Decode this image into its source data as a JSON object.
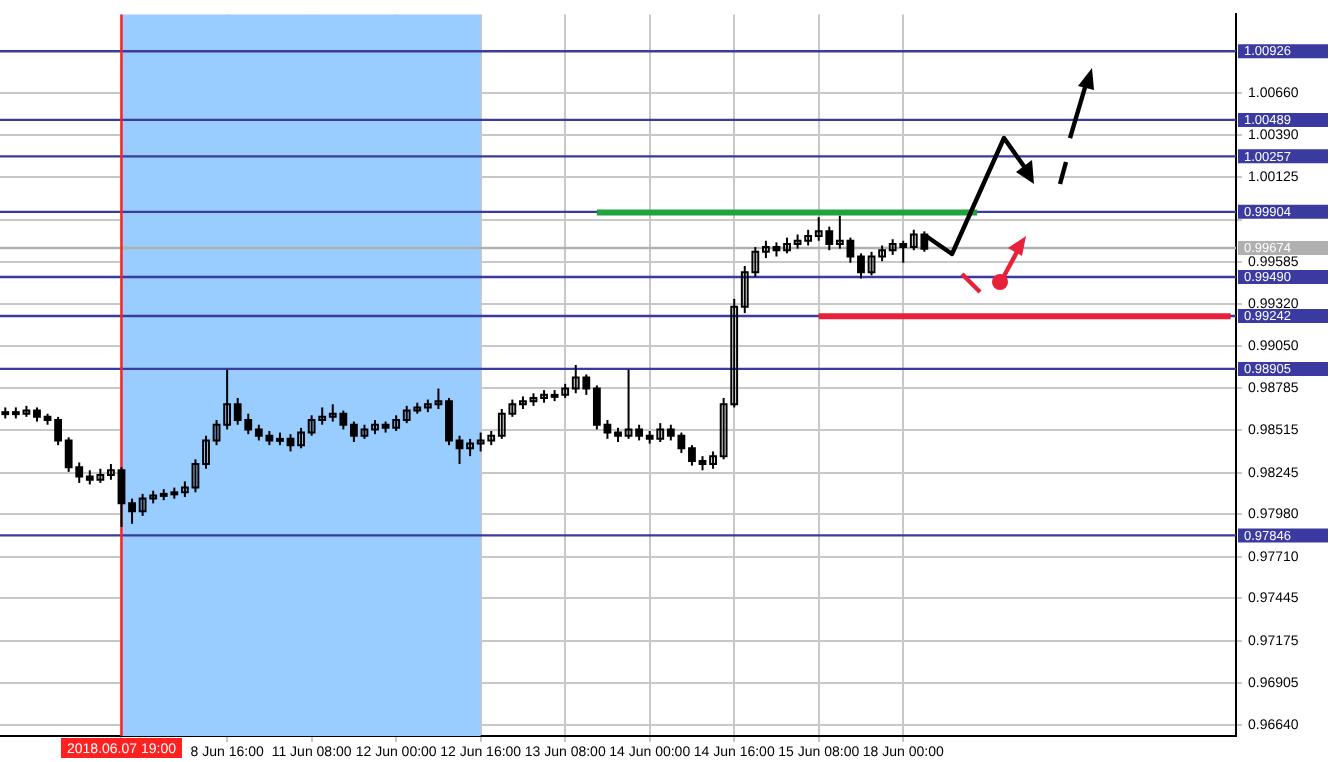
{
  "chart_data": {
    "type": "candlestick",
    "color": "#000000",
    "categories": [
      null,
      null,
      null,
      null,
      null,
      null,
      null,
      null,
      null,
      null,
      null,
      "2018.06.07 19:00",
      null,
      null,
      null,
      null,
      null,
      null,
      null,
      null,
      null,
      "8 Jun 16:00",
      null,
      null,
      null,
      null,
      null,
      null,
      null,
      "11 Jun 08:00",
      null,
      null,
      null,
      null,
      null,
      null,
      null,
      "12 Jun 00:00",
      null,
      null,
      null,
      null,
      null,
      null,
      null,
      "12 Jun 16:00",
      null,
      null,
      null,
      null,
      null,
      null,
      null,
      "13 Jun 08:00",
      null,
      null,
      null,
      null,
      null,
      null,
      null,
      "14 Jun 00:00",
      null,
      null,
      null,
      null,
      null,
      null,
      null,
      "14 Jun 16:00",
      null,
      null,
      null,
      null,
      null,
      null,
      null,
      "15 Jun 08:00",
      null,
      null,
      null,
      null,
      null,
      null,
      null,
      "18 Jun 00:00",
      null,
      null,
      null,
      null,
      null,
      null,
      null,
      null,
      null,
      null,
      null,
      null,
      null,
      null,
      null,
      null,
      null,
      null,
      null,
      null,
      null,
      null,
      null,
      null,
      null,
      null,
      null,
      null,
      null,
      null,
      null
    ],
    "ohlc": [
      [
        0.9862,
        0.9866,
        0.9859,
        0.9863
      ],
      [
        0.9863,
        0.9866,
        0.9859,
        0.9862
      ],
      [
        0.9862,
        0.9867,
        0.986,
        0.9864
      ],
      [
        0.9864,
        0.9866,
        0.9857,
        0.986
      ],
      [
        0.986,
        0.9862,
        0.9855,
        0.9858
      ],
      [
        0.9858,
        0.986,
        0.9842,
        0.9845
      ],
      [
        0.9845,
        0.9847,
        0.9825,
        0.9828
      ],
      [
        0.9828,
        0.9831,
        0.9818,
        0.9822
      ],
      [
        0.9822,
        0.9826,
        0.9817,
        0.982
      ],
      [
        0.982,
        0.9827,
        0.9818,
        0.9823
      ],
      [
        0.9823,
        0.983,
        0.982,
        0.9826
      ],
      [
        0.9826,
        0.9828,
        0.979,
        0.9805
      ],
      [
        0.9805,
        0.9808,
        0.9792,
        0.98
      ],
      [
        0.98,
        0.9811,
        0.9797,
        0.9808
      ],
      [
        0.9808,
        0.9813,
        0.9805,
        0.981
      ],
      [
        0.981,
        0.9814,
        0.9807,
        0.9811
      ],
      [
        0.9811,
        0.9815,
        0.9808,
        0.9812
      ],
      [
        0.9812,
        0.9819,
        0.9809,
        0.9815
      ],
      [
        0.9815,
        0.9833,
        0.9812,
        0.983
      ],
      [
        0.983,
        0.9848,
        0.9827,
        0.9845
      ],
      [
        0.9845,
        0.9858,
        0.9842,
        0.9855
      ],
      [
        0.9855,
        0.989,
        0.9852,
        0.9868
      ],
      [
        0.9868,
        0.9872,
        0.9855,
        0.9858
      ],
      [
        0.9858,
        0.9862,
        0.9849,
        0.9852
      ],
      [
        0.9852,
        0.9855,
        0.9845,
        0.9848
      ],
      [
        0.9848,
        0.9851,
        0.9842,
        0.9845
      ],
      [
        0.9845,
        0.985,
        0.9842,
        0.9846
      ],
      [
        0.9846,
        0.9849,
        0.9838,
        0.9842
      ],
      [
        0.9842,
        0.9853,
        0.984,
        0.985
      ],
      [
        0.985,
        0.9861,
        0.9848,
        0.9858
      ],
      [
        0.9858,
        0.9866,
        0.9855,
        0.986
      ],
      [
        0.986,
        0.9868,
        0.9857,
        0.9862
      ],
      [
        0.9862,
        0.9864,
        0.9852,
        0.9855
      ],
      [
        0.9855,
        0.9857,
        0.9844,
        0.9848
      ],
      [
        0.9848,
        0.9855,
        0.9846,
        0.9852
      ],
      [
        0.9852,
        0.9858,
        0.9849,
        0.9855
      ],
      [
        0.9855,
        0.9857,
        0.985,
        0.9853
      ],
      [
        0.9853,
        0.9861,
        0.9851,
        0.9858
      ],
      [
        0.9858,
        0.9867,
        0.9856,
        0.9864
      ],
      [
        0.9864,
        0.9869,
        0.9862,
        0.9866
      ],
      [
        0.9866,
        0.9871,
        0.9863,
        0.9868
      ],
      [
        0.9868,
        0.9878,
        0.9865,
        0.987
      ],
      [
        0.987,
        0.9872,
        0.9842,
        0.9845
      ],
      [
        0.9845,
        0.9848,
        0.983,
        0.984
      ],
      [
        0.984,
        0.9846,
        0.9835,
        0.9843
      ],
      [
        0.9843,
        0.985,
        0.9838,
        0.9845
      ],
      [
        0.9845,
        0.9851,
        0.9842,
        0.9848
      ],
      [
        0.9848,
        0.9865,
        0.9846,
        0.9862
      ],
      [
        0.9862,
        0.9871,
        0.986,
        0.9868
      ],
      [
        0.9868,
        0.9873,
        0.9865,
        0.987
      ],
      [
        0.987,
        0.9875,
        0.9867,
        0.9872
      ],
      [
        0.9872,
        0.9877,
        0.9869,
        0.9874
      ],
      [
        0.9874,
        0.9877,
        0.987,
        0.9874
      ],
      [
        0.9874,
        0.9881,
        0.9872,
        0.9878
      ],
      [
        0.9878,
        0.9893,
        0.9875,
        0.9885
      ],
      [
        0.9885,
        0.9887,
        0.9874,
        0.9878
      ],
      [
        0.9878,
        0.988,
        0.9852,
        0.9855
      ],
      [
        0.9855,
        0.9858,
        0.9846,
        0.985
      ],
      [
        0.985,
        0.9853,
        0.9844,
        0.9848
      ],
      [
        0.9848,
        0.989,
        0.9846,
        0.9852
      ],
      [
        0.9852,
        0.9855,
        0.9845,
        0.9848
      ],
      [
        0.9848,
        0.9851,
        0.9843,
        0.9846
      ],
      [
        0.9846,
        0.9856,
        0.9844,
        0.9852
      ],
      [
        0.9852,
        0.9855,
        0.9845,
        0.9848
      ],
      [
        0.9848,
        0.985,
        0.9837,
        0.984
      ],
      [
        0.984,
        0.9842,
        0.9829,
        0.9832
      ],
      [
        0.9832,
        0.9835,
        0.9826,
        0.983
      ],
      [
        0.983,
        0.9838,
        0.9827,
        0.9835
      ],
      [
        0.9835,
        0.9872,
        0.9833,
        0.9868
      ],
      [
        0.9868,
        0.9935,
        0.9866,
        0.993
      ],
      [
        0.993,
        0.9956,
        0.9926,
        0.9952
      ],
      [
        0.9952,
        0.9968,
        0.9949,
        0.9965
      ],
      [
        0.9965,
        0.9972,
        0.9961,
        0.9968
      ],
      [
        0.9968,
        0.9971,
        0.9962,
        0.9966
      ],
      [
        0.9966,
        0.9974,
        0.9964,
        0.997
      ],
      [
        0.997,
        0.9976,
        0.9967,
        0.9972
      ],
      [
        0.9972,
        0.9979,
        0.9969,
        0.9975
      ],
      [
        0.9975,
        0.9987,
        0.9972,
        0.9978
      ],
      [
        0.9978,
        0.9981,
        0.9966,
        0.997
      ],
      [
        0.997,
        0.9988,
        0.9967,
        0.9972
      ],
      [
        0.9972,
        0.9974,
        0.9958,
        0.9962
      ],
      [
        0.9962,
        0.9964,
        0.9948,
        0.9952
      ],
      [
        0.9952,
        0.9965,
        0.995,
        0.9962
      ],
      [
        0.9962,
        0.9969,
        0.9959,
        0.9966
      ],
      [
        0.9966,
        0.9973,
        0.9963,
        0.997
      ],
      [
        0.997,
        0.9972,
        0.9958,
        0.9968
      ],
      [
        0.9968,
        0.9979,
        0.9966,
        0.9976
      ],
      [
        0.9976,
        0.9978,
        0.9965,
        0.9967
      ],
      null,
      null,
      null,
      null,
      null,
      null,
      null,
      null,
      null,
      null,
      null,
      null,
      null,
      null,
      null,
      null,
      null,
      null,
      null,
      null,
      null,
      null,
      null,
      null,
      null,
      null,
      null,
      null,
      null
    ],
    "series": [
      {
        "type": "line",
        "color": "#1fa33a",
        "values": [
          null,
          null,
          null,
          null,
          null,
          null,
          null,
          null,
          null,
          null,
          null,
          null,
          null,
          null,
          null,
          null,
          null,
          null,
          null,
          null,
          null,
          null,
          null,
          null,
          null,
          null,
          null,
          null,
          null,
          null,
          null,
          null,
          null,
          null,
          null,
          null,
          null,
          null,
          null,
          null,
          null,
          null,
          null,
          null,
          null,
          null,
          null,
          null,
          null,
          null,
          null,
          null,
          null,
          null,
          null,
          null,
          0.999,
          null,
          null,
          null,
          null,
          null,
          null,
          null,
          null,
          null,
          null,
          null,
          null,
          null,
          null,
          null,
          null,
          null,
          null,
          null,
          null,
          null,
          null,
          null,
          null,
          null,
          null,
          null,
          null,
          null,
          null,
          null,
          null,
          null,
          null,
          null,
          0.999,
          null,
          null,
          null,
          null,
          null,
          null,
          null,
          null,
          null,
          null,
          null,
          null,
          null,
          null,
          null,
          null,
          null,
          null,
          null,
          null,
          null,
          null,
          null,
          null
        ]
      },
      {
        "type": "line",
        "color": "#e8203a",
        "values": [
          null,
          null,
          null,
          null,
          null,
          null,
          null,
          null,
          null,
          null,
          null,
          null,
          null,
          null,
          null,
          null,
          null,
          null,
          null,
          null,
          null,
          null,
          null,
          null,
          null,
          null,
          null,
          null,
          null,
          null,
          null,
          null,
          null,
          null,
          null,
          null,
          null,
          null,
          null,
          null,
          null,
          null,
          null,
          null,
          null,
          null,
          null,
          null,
          null,
          null,
          null,
          null,
          null,
          null,
          null,
          null,
          null,
          null,
          null,
          null,
          null,
          null,
          null,
          null,
          null,
          null,
          null,
          null,
          null,
          null,
          null,
          null,
          null,
          null,
          null,
          null,
          null,
          0.9924,
          null,
          null,
          null,
          null,
          null,
          null,
          null,
          null,
          null,
          null,
          null,
          null,
          null,
          null,
          null,
          null,
          null,
          null,
          null,
          null,
          null,
          null,
          null,
          null,
          null,
          null,
          null,
          null,
          null,
          null,
          null,
          null,
          null,
          null,
          null,
          null,
          null,
          null,
          0.9924
        ]
      }
    ],
    "ylim": [
      0.9657,
      1.0116
    ],
    "yticks": [
      {
        "value": 0.9664,
        "label": "0.96640"
      },
      {
        "value": 0.96905,
        "label": "0.96905"
      },
      {
        "value": 0.97175,
        "label": "0.97175"
      },
      {
        "value": 0.97445,
        "label": "0.97445"
      },
      {
        "value": 0.9771,
        "label": "0.97710"
      },
      {
        "value": 0.9798,
        "label": "0.97980"
      },
      {
        "value": 0.98245,
        "label": "0.98245"
      },
      {
        "value": 0.98515,
        "label": "0.98515"
      },
      {
        "value": 0.98785,
        "label": "0.98785"
      },
      {
        "value": 0.9905,
        "label": "0.99050"
      },
      {
        "value": 0.9932,
        "label": "0.99320"
      },
      {
        "value": 0.99585,
        "label": "0.99585"
      },
      {
        "value": 0.99855,
        "label": null
      },
      {
        "value": 1.00125,
        "label": "1.00125"
      },
      {
        "value": 1.0039,
        "label": "1.00390"
      },
      {
        "value": 1.0066,
        "label": "1.00660"
      }
    ],
    "ref_lines": [
      {
        "axis": "y",
        "value": 1.00926,
        "label": "1.00926",
        "color": "#3a3aa0"
      },
      {
        "axis": "y",
        "value": 1.00489,
        "label": "1.00489",
        "color": "#3a3aa0"
      },
      {
        "axis": "y",
        "value": 1.00257,
        "label": "1.00257",
        "color": "#3a3aa0"
      },
      {
        "axis": "y",
        "value": 0.99904,
        "label": "0.99904",
        "color": "#3a3aa0"
      },
      {
        "axis": "y",
        "value": 0.99674,
        "label": "0.99674",
        "color": "#b0b0b0"
      },
      {
        "axis": "y",
        "value": 0.9949,
        "label": "0.99490",
        "color": "#3a3aa0"
      },
      {
        "axis": "y",
        "value": 0.99242,
        "label": "0.99242",
        "color": "#3a3aa0"
      },
      {
        "axis": "y",
        "value": 0.98905,
        "label": "0.98905",
        "color": "#3a3aa0"
      },
      {
        "axis": "y",
        "value": 0.97846,
        "label": "0.97846",
        "color": "#3a3aa0"
      },
      {
        "axis": "x",
        "value": "2018.06.07 19:00",
        "color": "#ff2020"
      }
    ],
    "bands": [
      {
        "axis": "x",
        "from": "2018.06.07 19:00",
        "to": "12 Jun 16:00",
        "color": "#99ccff"
      }
    ],
    "grid": true
  }
}
